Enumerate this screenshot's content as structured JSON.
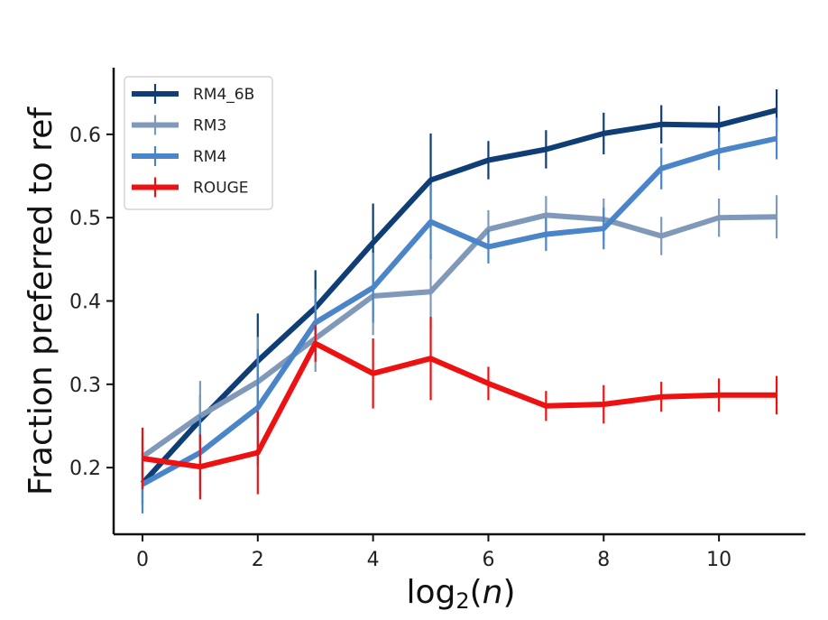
{
  "chart_data": {
    "type": "line",
    "xlabel": "log₂(n)",
    "xlabel_parts": {
      "prefix": "log",
      "sub": "2",
      "open": "(",
      "var": "n",
      "close": ")"
    },
    "ylabel": "Fraction preferred to ref",
    "xlim": [
      -0.5,
      11.5
    ],
    "ylim": [
      0.12,
      0.68
    ],
    "x_ticks": [
      0,
      2,
      4,
      6,
      8,
      10
    ],
    "x_tick_labels": [
      "0",
      "2",
      "4",
      "6",
      "8",
      "10"
    ],
    "y_ticks": [
      0.2,
      0.3,
      0.4,
      0.5,
      0.6
    ],
    "y_tick_labels": [
      "0.2",
      "0.3",
      "0.4",
      "0.5",
      "0.6"
    ],
    "grid": false,
    "legend_position": "top-left",
    "x": [
      0,
      1,
      2,
      3,
      4,
      5,
      6,
      7,
      8,
      9,
      10,
      11
    ],
    "series": [
      {
        "name": "RM4_6B",
        "color": "#0f3d75",
        "values": [
          0.181,
          0.257,
          0.328,
          0.392,
          0.47,
          0.545,
          0.569,
          0.582,
          0.601,
          0.612,
          0.611,
          0.629
        ],
        "errors": [
          0.025,
          0.03,
          0.057,
          0.045,
          0.047,
          0.056,
          0.023,
          0.023,
          0.025,
          0.023,
          0.023,
          0.025
        ]
      },
      {
        "name": "RM3",
        "color": "#8099b9",
        "values": [
          0.213,
          0.262,
          0.303,
          0.355,
          0.406,
          0.411,
          0.486,
          0.503,
          0.498,
          0.478,
          0.5,
          0.501
        ],
        "errors": [
          0.025,
          0.042,
          0.054,
          0.04,
          0.047,
          0.045,
          0.023,
          0.023,
          0.025,
          0.023,
          0.023,
          0.026
        ]
      },
      {
        "name": "RM4",
        "color": "#4a84c9",
        "values": [
          0.18,
          0.218,
          0.272,
          0.374,
          0.416,
          0.495,
          0.465,
          0.48,
          0.487,
          0.559,
          0.58,
          0.595
        ],
        "errors": [
          0.035,
          0.045,
          0.07,
          0.04,
          0.042,
          0.045,
          0.02,
          0.02,
          0.025,
          0.025,
          0.023,
          0.025
        ]
      },
      {
        "name": "ROUGE",
        "color": "#ee1111",
        "values": [
          0.211,
          0.201,
          0.218,
          0.349,
          0.313,
          0.331,
          0.301,
          0.274,
          0.276,
          0.285,
          0.287,
          0.287
        ],
        "errors": [
          0.037,
          0.039,
          0.05,
          0.022,
          0.042,
          0.05,
          0.02,
          0.018,
          0.023,
          0.018,
          0.02,
          0.023
        ]
      }
    ]
  }
}
